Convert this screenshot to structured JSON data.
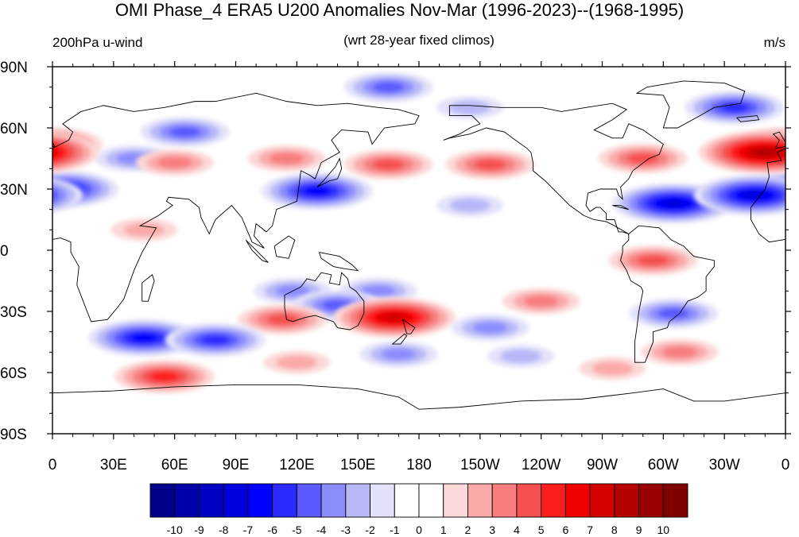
{
  "title": "OMI Phase_4 ERA5 U200 Anomalies Nov-Mar (1996-2023)--(1968-1995)",
  "left_label": "200hPa u-wind",
  "center_label": "(wrt 28-year fixed climos)",
  "right_label": "m/s",
  "lat_ticks": [
    {
      "label": "90N",
      "value": 90
    },
    {
      "label": "60N",
      "value": 60
    },
    {
      "label": "30N",
      "value": 30
    },
    {
      "label": "0",
      "value": 0
    },
    {
      "label": "30S",
      "value": -30
    },
    {
      "label": "60S",
      "value": -60
    },
    {
      "label": "90S",
      "value": -90
    }
  ],
  "lon_ticks": [
    {
      "label": "0",
      "value": 0
    },
    {
      "label": "30E",
      "value": 30
    },
    {
      "label": "60E",
      "value": 60
    },
    {
      "label": "90E",
      "value": 90
    },
    {
      "label": "120E",
      "value": 120
    },
    {
      "label": "150E",
      "value": 150
    },
    {
      "label": "180",
      "value": 180
    },
    {
      "label": "150W",
      "value": 210
    },
    {
      "label": "120W",
      "value": 240
    },
    {
      "label": "90W",
      "value": 270
    },
    {
      "label": "60W",
      "value": 300
    },
    {
      "label": "30W",
      "value": 330
    },
    {
      "label": "0",
      "value": 360
    }
  ],
  "colorbar": {
    "labels": [
      "-10",
      "-9",
      "-8",
      "-7",
      "-6",
      "-5",
      "-4",
      "-3",
      "-2",
      "-1",
      "0",
      "1",
      "2",
      "3",
      "4",
      "5",
      "6",
      "7",
      "8",
      "9",
      "10"
    ],
    "colors": [
      "#00008a",
      "#0000a8",
      "#0000c4",
      "#0000df",
      "#0000ff",
      "#2a2aff",
      "#5a5aff",
      "#8c8cff",
      "#b8b8f8",
      "#e2e2fa",
      "#ffffff",
      "#ffffff",
      "#fcd8d8",
      "#fbaaaa",
      "#f77e7e",
      "#f45050",
      "#ff1e1e",
      "#f00000",
      "#d40000",
      "#b50000",
      "#960000",
      "#7f0000"
    ]
  },
  "anomalies": [
    {
      "lon": 5,
      "lat": 30,
      "value": -6
    },
    {
      "lon": 40,
      "lat": 45,
      "value": -3
    },
    {
      "lon": 65,
      "lat": 58,
      "value": -4
    },
    {
      "lon": 0,
      "lat": 52,
      "value": 5
    },
    {
      "lon": 165,
      "lat": 80,
      "value": -4
    },
    {
      "lon": 205,
      "lat": 70,
      "value": -2
    },
    {
      "lon": 335,
      "lat": 70,
      "value": -5
    },
    {
      "lon": 60,
      "lat": 43,
      "value": 3
    },
    {
      "lon": 115,
      "lat": 45,
      "value": 3
    },
    {
      "lon": 165,
      "lat": 42,
      "value": 4
    },
    {
      "lon": 215,
      "lat": 42,
      "value": 4
    },
    {
      "lon": 350,
      "lat": 48,
      "value": 8
    },
    {
      "lon": 290,
      "lat": 45,
      "value": 4
    },
    {
      "lon": 130,
      "lat": 29,
      "value": -6
    },
    {
      "lon": 305,
      "lat": 23,
      "value": -7
    },
    {
      "lon": 345,
      "lat": 27,
      "value": -7
    },
    {
      "lon": 205,
      "lat": 22,
      "value": -2
    },
    {
      "lon": 295,
      "lat": -5,
      "value": 4
    },
    {
      "lon": 45,
      "lat": 10,
      "value": 2
    },
    {
      "lon": 160,
      "lat": -20,
      "value": -3
    },
    {
      "lon": 118,
      "lat": -20,
      "value": -3
    },
    {
      "lon": 140,
      "lat": -27,
      "value": -4
    },
    {
      "lon": 113,
      "lat": -34,
      "value": 4
    },
    {
      "lon": 168,
      "lat": -33,
      "value": 7
    },
    {
      "lon": 240,
      "lat": -25,
      "value": 3
    },
    {
      "lon": 305,
      "lat": -31,
      "value": -4
    },
    {
      "lon": 308,
      "lat": -50,
      "value": 3
    },
    {
      "lon": 45,
      "lat": -43,
      "value": -6
    },
    {
      "lon": 80,
      "lat": -44,
      "value": -5
    },
    {
      "lon": 55,
      "lat": -62,
      "value": 5
    },
    {
      "lon": 120,
      "lat": -55,
      "value": 2
    },
    {
      "lon": 170,
      "lat": -51,
      "value": -3
    },
    {
      "lon": 230,
      "lat": -52,
      "value": -2
    },
    {
      "lon": 275,
      "lat": -58,
      "value": 2
    },
    {
      "lon": 215,
      "lat": -38,
      "value": -3
    }
  ]
}
